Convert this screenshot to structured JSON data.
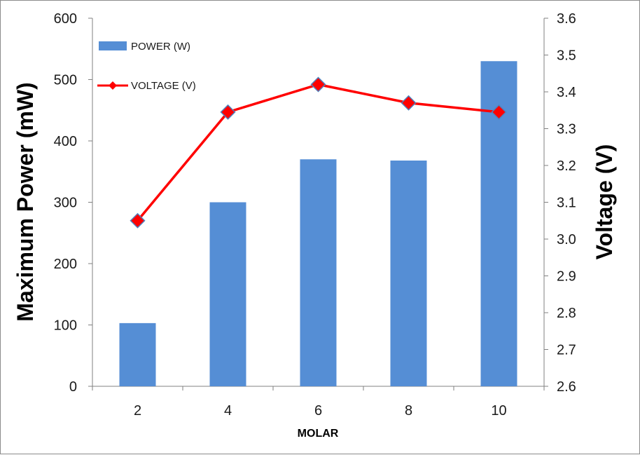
{
  "chart_data": {
    "type": "bar",
    "xlabel": "MOLAR",
    "ylabel_left": "Maximum Power (mW)",
    "ylabel_right": "Voltage (V)",
    "categories": [
      "2",
      "4",
      "6",
      "8",
      "10"
    ],
    "ylim_left": [
      0,
      600
    ],
    "yticks_left": [
      "0",
      "100",
      "200",
      "300",
      "400",
      "500",
      "600"
    ],
    "ylim_right": [
      2.6,
      3.6
    ],
    "yticks_right": [
      "2.6",
      "2.7",
      "2.8",
      "2.9",
      "3.0",
      "3.1",
      "3.2",
      "3.3",
      "3.4",
      "3.5",
      "3.6"
    ],
    "grid": false,
    "legend_position": "top-left",
    "series": [
      {
        "name": "POWER (W)",
        "type": "bar",
        "axis": "left",
        "color": "#558ed5",
        "values": [
          103,
          300,
          370,
          368,
          530
        ]
      },
      {
        "name": "VOLTAGE  (V)",
        "type": "line",
        "axis": "right",
        "color": "#ff0000",
        "marker": "diamond",
        "values": [
          3.05,
          3.345,
          3.42,
          3.37,
          3.345
        ]
      }
    ]
  }
}
